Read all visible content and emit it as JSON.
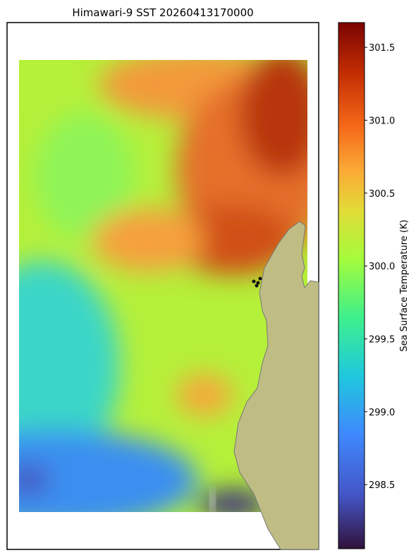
{
  "title": "Himawari-9 SST 20260413170000",
  "colorbar": {
    "label": "Sea Surface Temperature (K)",
    "lim": [
      298.06,
      301.67
    ],
    "ticks": [
      298.5,
      {
        "value": 299,
        "label": "299.0"
      },
      299.5,
      {
        "value": 300,
        "label": "300.0"
      },
      300.5,
      {
        "value": 301,
        "label": "301.0"
      },
      301.5
    ]
  }
}
